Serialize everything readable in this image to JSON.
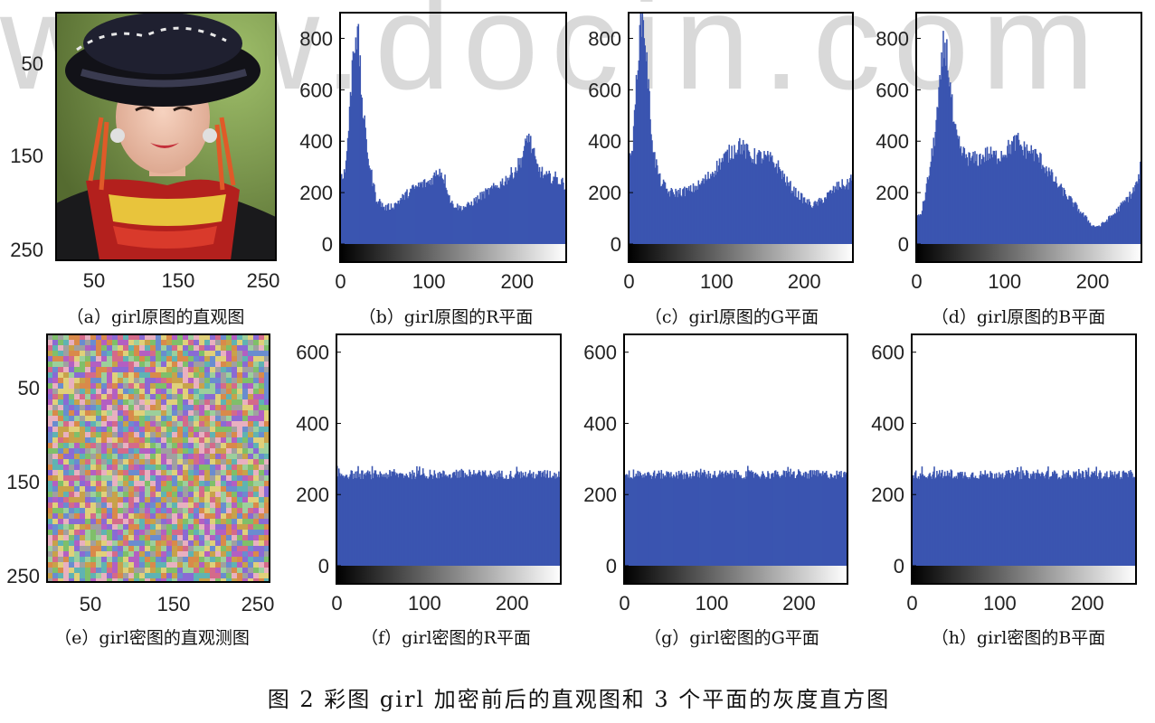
{
  "watermark": "www.docin.com",
  "figure_title": "图 2   彩图 girl 加密前后的直观图和 3 个平面的灰度直方图",
  "captions": {
    "a": "（a）girl原图的直观图",
    "b": "（b）girl原图的R平面",
    "c": "（c）girl原图的G平面",
    "d": "（d）girl原图的B平面",
    "e": "（e）girl密图的直观测图",
    "f": "（f）girl密图的R平面",
    "g": "（g）girl密图的G平面",
    "h": "（h）girl密图的B平面"
  },
  "image_axes": {
    "x_ticks": [
      "50",
      "150",
      "250"
    ],
    "y_ticks": [
      "50",
      "150",
      "250"
    ]
  },
  "colors": {
    "bar": "#3a55b0",
    "axis": "#000000"
  },
  "chart_data": [
    {
      "type": "bar",
      "id": "b",
      "xlim": [
        0,
        255
      ],
      "ylim": [
        0,
        900
      ],
      "xticks": [
        0,
        100,
        200
      ],
      "yticks": [
        0,
        200,
        400,
        600,
        800
      ],
      "profile": [
        [
          0,
          270
        ],
        [
          5,
          280
        ],
        [
          10,
          500
        ],
        [
          14,
          760
        ],
        [
          17,
          830
        ],
        [
          20,
          780
        ],
        [
          24,
          560
        ],
        [
          28,
          420
        ],
        [
          33,
          300
        ],
        [
          40,
          180
        ],
        [
          50,
          140
        ],
        [
          60,
          150
        ],
        [
          70,
          180
        ],
        [
          80,
          210
        ],
        [
          90,
          230
        ],
        [
          100,
          240
        ],
        [
          105,
          260
        ],
        [
          112,
          290
        ],
        [
          118,
          250
        ],
        [
          125,
          160
        ],
        [
          135,
          140
        ],
        [
          145,
          150
        ],
        [
          160,
          190
        ],
        [
          175,
          220
        ],
        [
          190,
          260
        ],
        [
          200,
          300
        ],
        [
          208,
          360
        ],
        [
          212,
          430
        ],
        [
          216,
          380
        ],
        [
          222,
          300
        ],
        [
          232,
          260
        ],
        [
          242,
          260
        ],
        [
          250,
          240
        ],
        [
          255,
          230
        ]
      ]
    },
    {
      "type": "bar",
      "id": "c",
      "xlim": [
        0,
        255
      ],
      "ylim": [
        0,
        900
      ],
      "xticks": [
        0,
        100,
        200
      ],
      "yticks": [
        0,
        200,
        400,
        600,
        800
      ],
      "profile": [
        [
          0,
          300
        ],
        [
          5,
          420
        ],
        [
          10,
          750
        ],
        [
          14,
          880
        ],
        [
          17,
          850
        ],
        [
          20,
          700
        ],
        [
          24,
          500
        ],
        [
          28,
          350
        ],
        [
          35,
          250
        ],
        [
          45,
          200
        ],
        [
          55,
          200
        ],
        [
          70,
          210
        ],
        [
          80,
          230
        ],
        [
          90,
          260
        ],
        [
          100,
          300
        ],
        [
          110,
          340
        ],
        [
          120,
          370
        ],
        [
          126,
          390
        ],
        [
          130,
          370
        ],
        [
          140,
          340
        ],
        [
          150,
          340
        ],
        [
          160,
          330
        ],
        [
          170,
          300
        ],
        [
          180,
          240
        ],
        [
          190,
          200
        ],
        [
          200,
          170
        ],
        [
          210,
          150
        ],
        [
          220,
          170
        ],
        [
          230,
          200
        ],
        [
          240,
          230
        ],
        [
          250,
          230
        ],
        [
          255,
          280
        ]
      ]
    },
    {
      "type": "bar",
      "id": "d",
      "xlim": [
        0,
        255
      ],
      "ylim": [
        0,
        900
      ],
      "xticks": [
        0,
        100,
        200
      ],
      "yticks": [
        0,
        200,
        400,
        600,
        800
      ],
      "profile": [
        [
          0,
          100
        ],
        [
          5,
          120
        ],
        [
          10,
          200
        ],
        [
          18,
          360
        ],
        [
          25,
          560
        ],
        [
          30,
          760
        ],
        [
          33,
          770
        ],
        [
          37,
          650
        ],
        [
          42,
          450
        ],
        [
          50,
          360
        ],
        [
          60,
          330
        ],
        [
          70,
          330
        ],
        [
          80,
          350
        ],
        [
          90,
          340
        ],
        [
          100,
          360
        ],
        [
          110,
          390
        ],
        [
          115,
          400
        ],
        [
          120,
          370
        ],
        [
          130,
          360
        ],
        [
          140,
          330
        ],
        [
          150,
          280
        ],
        [
          160,
          230
        ],
        [
          170,
          190
        ],
        [
          180,
          150
        ],
        [
          190,
          110
        ],
        [
          200,
          70
        ],
        [
          208,
          70
        ],
        [
          215,
          90
        ],
        [
          225,
          120
        ],
        [
          235,
          160
        ],
        [
          245,
          200
        ],
        [
          252,
          250
        ],
        [
          255,
          330
        ]
      ]
    },
    {
      "type": "bar",
      "id": "f",
      "xlim": [
        0,
        255
      ],
      "ylim": [
        0,
        650
      ],
      "xticks": [
        0,
        100,
        200
      ],
      "yticks": [
        0,
        200,
        400,
        600
      ],
      "mean": 256,
      "spread": 13
    },
    {
      "type": "bar",
      "id": "g",
      "xlim": [
        0,
        255
      ],
      "ylim": [
        0,
        650
      ],
      "xticks": [
        0,
        100,
        200
      ],
      "yticks": [
        0,
        200,
        400,
        600
      ],
      "mean": 256,
      "spread": 13
    },
    {
      "type": "bar",
      "id": "h",
      "xlim": [
        0,
        255
      ],
      "ylim": [
        0,
        650
      ],
      "xticks": [
        0,
        100,
        200
      ],
      "yticks": [
        0,
        200,
        400,
        600
      ],
      "mean": 256,
      "spread": 13
    }
  ]
}
